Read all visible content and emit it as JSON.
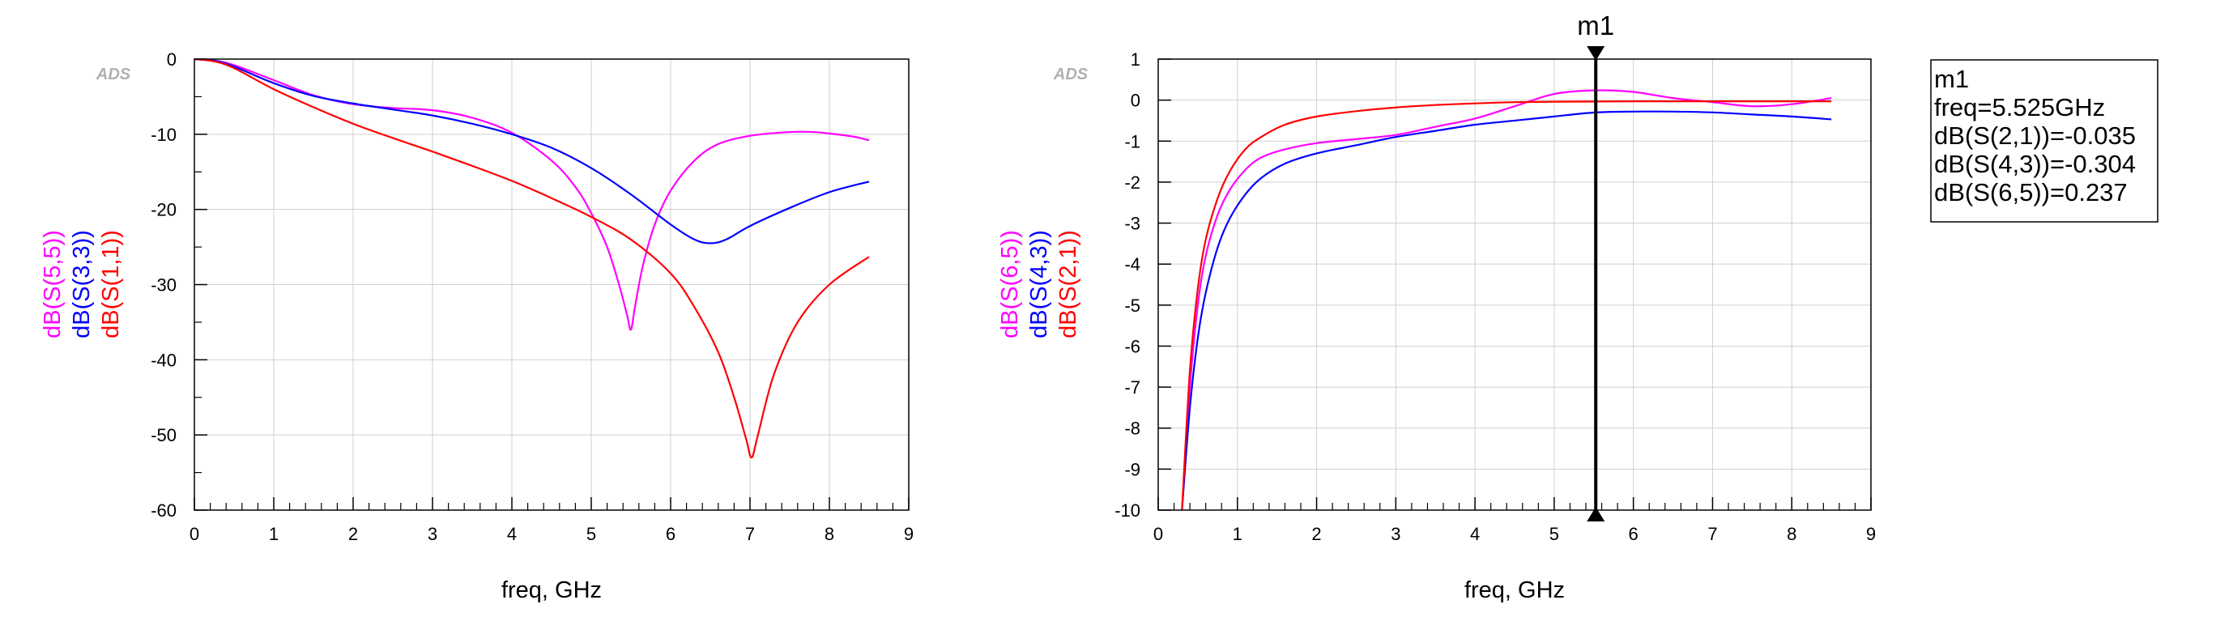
{
  "chart_data": [
    {
      "type": "line",
      "watermark": "ADS",
      "xlabel": "freq, GHz",
      "xlim": [
        0,
        9
      ],
      "ylim": [
        -60,
        0
      ],
      "x_ticks": [
        0,
        1,
        2,
        3,
        4,
        5,
        6,
        7,
        8,
        9
      ],
      "y_ticks": [
        0,
        -10,
        -20,
        -30,
        -40,
        -50,
        -60
      ],
      "x_tick_labels": [
        "0",
        "1",
        "2",
        "3",
        "4",
        "5",
        "6",
        "7",
        "8",
        "9"
      ],
      "y_tick_labels": [
        "0",
        "-10",
        "-20",
        "-30",
        "-40",
        "-50",
        "-60"
      ],
      "grid": true,
      "series": [
        {
          "name": "dB(S(5,5))",
          "color": "#ff00ff",
          "x": [
            0,
            0.25,
            0.5,
            1,
            1.5,
            2,
            2.5,
            3,
            3.5,
            4,
            4.5,
            4.8,
            5,
            5.2,
            5.35,
            5.45,
            5.5,
            5.55,
            5.65,
            5.8,
            6,
            6.3,
            6.6,
            7,
            7.5,
            7.8,
            8,
            8.3,
            8.5
          ],
          "y": [
            0,
            -0.2,
            -0.8,
            -2.8,
            -4.8,
            -6.0,
            -6.5,
            -6.8,
            -7.8,
            -9.8,
            -13.5,
            -17.0,
            -20.5,
            -25.0,
            -30.0,
            -34.0,
            -36.0,
            -33.0,
            -27.5,
            -22.0,
            -17.5,
            -13.5,
            -11.3,
            -10.2,
            -9.7,
            -9.7,
            -9.9,
            -10.3,
            -10.8
          ]
        },
        {
          "name": "dB(S(3,3))",
          "color": "#0000ff",
          "x": [
            0,
            0.25,
            0.5,
            1,
            1.5,
            2,
            2.5,
            3,
            3.5,
            4,
            4.5,
            5,
            5.5,
            6,
            6.3,
            6.5,
            6.7,
            7,
            7.5,
            8,
            8.5
          ],
          "y": [
            0,
            -0.2,
            -1.0,
            -3.2,
            -4.9,
            -5.9,
            -6.7,
            -7.5,
            -8.6,
            -10.0,
            -11.8,
            -14.5,
            -18.0,
            -22.0,
            -24.0,
            -24.5,
            -24.0,
            -22.2,
            -19.8,
            -17.7,
            -16.3
          ]
        },
        {
          "name": "dB(S(1,1))",
          "color": "#ff0000",
          "x": [
            0,
            0.25,
            0.5,
            1,
            1.5,
            2,
            2.5,
            3,
            3.5,
            4,
            4.5,
            5,
            5.5,
            6,
            6.3,
            6.6,
            6.8,
            6.95,
            7.02,
            7.1,
            7.3,
            7.6,
            8,
            8.5
          ],
          "y": [
            0,
            -0.3,
            -1.2,
            -4.0,
            -6.4,
            -8.6,
            -10.5,
            -12.3,
            -14.2,
            -16.2,
            -18.5,
            -21.0,
            -24.0,
            -28.5,
            -33.0,
            -39.0,
            -45.0,
            -50.5,
            -53.0,
            -50.0,
            -42.0,
            -35.0,
            -30.0,
            -26.3
          ]
        }
      ]
    },
    {
      "type": "line",
      "watermark": "ADS",
      "xlabel": "freq, GHz",
      "xlim": [
        0,
        9
      ],
      "ylim": [
        -10,
        1
      ],
      "x_ticks": [
        0,
        1,
        2,
        3,
        4,
        5,
        6,
        7,
        8,
        9
      ],
      "y_ticks": [
        1,
        0,
        -1,
        -2,
        -3,
        -4,
        -5,
        -6,
        -7,
        -8,
        -9,
        -10
      ],
      "x_tick_labels": [
        "0",
        "1",
        "2",
        "3",
        "4",
        "5",
        "6",
        "7",
        "8",
        "9"
      ],
      "y_tick_labels": [
        "1",
        "0",
        "-1",
        "-2",
        "-3",
        "-4",
        "-5",
        "-6",
        "-7",
        "-8",
        "-9",
        "-10"
      ],
      "grid": true,
      "series": [
        {
          "name": "dB(S(6,5))",
          "color": "#ff00ff",
          "x": [
            0.3,
            0.4,
            0.5,
            0.6,
            0.75,
            0.9,
            1.1,
            1.3,
            1.6,
            2,
            2.5,
            3,
            3.5,
            4,
            4.5,
            5,
            5.5,
            6,
            6.5,
            7,
            7.5,
            8,
            8.5
          ],
          "y": [
            -10,
            -7.0,
            -5.0,
            -3.8,
            -2.8,
            -2.2,
            -1.7,
            -1.4,
            -1.2,
            -1.05,
            -0.95,
            -0.85,
            -0.65,
            -0.45,
            -0.15,
            0.15,
            0.237,
            0.2,
            0.05,
            -0.05,
            -0.15,
            -0.1,
            0.05
          ]
        },
        {
          "name": "dB(S(4,3))",
          "color": "#0000ff",
          "x": [
            0.3,
            0.4,
            0.5,
            0.6,
            0.75,
            0.9,
            1.1,
            1.3,
            1.6,
            2,
            2.5,
            3,
            3.5,
            4,
            4.5,
            5,
            5.5,
            6,
            6.5,
            7,
            7.5,
            8,
            8.5
          ],
          "y": [
            -10,
            -7.5,
            -5.8,
            -4.7,
            -3.6,
            -2.9,
            -2.3,
            -1.9,
            -1.55,
            -1.3,
            -1.1,
            -0.9,
            -0.75,
            -0.6,
            -0.5,
            -0.4,
            -0.304,
            -0.28,
            -0.28,
            -0.3,
            -0.35,
            -0.4,
            -0.47
          ]
        },
        {
          "name": "dB(S(2,1))",
          "color": "#ff0000",
          "x": [
            0.3,
            0.4,
            0.5,
            0.6,
            0.75,
            0.9,
            1.1,
            1.3,
            1.6,
            2,
            2.5,
            3,
            3.5,
            4,
            4.5,
            5,
            5.5,
            6,
            6.5,
            7,
            7.5,
            8,
            8.5
          ],
          "y": [
            -10,
            -6.6,
            -4.6,
            -3.4,
            -2.4,
            -1.75,
            -1.2,
            -0.9,
            -0.6,
            -0.4,
            -0.27,
            -0.18,
            -0.12,
            -0.08,
            -0.05,
            -0.04,
            -0.035,
            -0.03,
            -0.03,
            -0.03,
            -0.03,
            -0.03,
            -0.03
          ]
        }
      ],
      "marker": {
        "name": "m1",
        "x": 5.525,
        "readout": [
          "m1",
          "freq=5.525GHz",
          "dB(S(2,1))=-0.035",
          "dB(S(4,3))=-0.304",
          "dB(S(6,5))=0.237"
        ]
      }
    }
  ]
}
